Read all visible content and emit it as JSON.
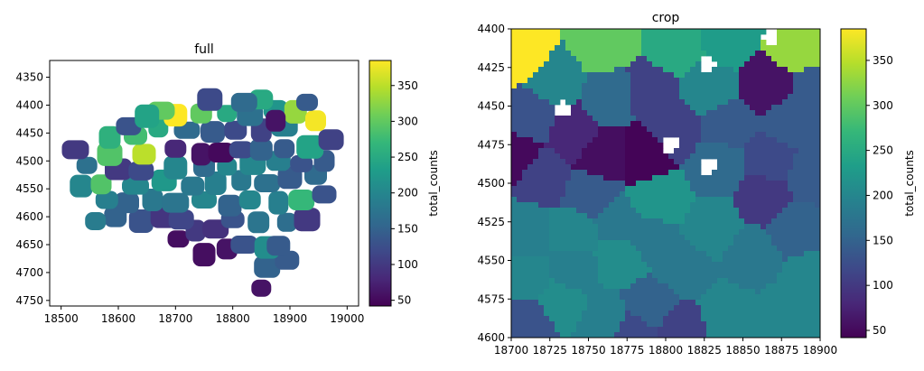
{
  "colormap": {
    "name": "viridis",
    "stops": [
      "#440154",
      "#482878",
      "#3e4989",
      "#31688e",
      "#26828e",
      "#1f9e89",
      "#35b779",
      "#6ece58",
      "#b5de2b",
      "#fde725"
    ]
  },
  "chart_data": [
    {
      "type": "heatmap",
      "kind": "spatial-segmentation",
      "title": "full",
      "xlim": [
        18480,
        19020
      ],
      "ylim": [
        4760,
        4320
      ],
      "xticks": [
        18500,
        18600,
        18700,
        18800,
        18900,
        19000
      ],
      "yticks": [
        4350,
        4400,
        4450,
        4500,
        4550,
        4600,
        4650,
        4700,
        4750
      ],
      "colorbar": {
        "label": "total_counts",
        "ticks": [
          50,
          100,
          150,
          200,
          250,
          300,
          350
        ],
        "range": [
          42,
          385
        ]
      },
      "cells": [
        {
          "x": 18850,
          "y": 4728,
          "v": 60
        },
        {
          "x": 18860,
          "y": 4690,
          "v": 150
        },
        {
          "x": 18895,
          "y": 4678,
          "v": 140
        },
        {
          "x": 18750,
          "y": 4668,
          "v": 55
        },
        {
          "x": 18790,
          "y": 4658,
          "v": 60
        },
        {
          "x": 18820,
          "y": 4650,
          "v": 130
        },
        {
          "x": 18860,
          "y": 4655,
          "v": 210
        },
        {
          "x": 18880,
          "y": 4652,
          "v": 140
        },
        {
          "x": 18705,
          "y": 4640,
          "v": 55
        },
        {
          "x": 18735,
          "y": 4625,
          "v": 100
        },
        {
          "x": 18770,
          "y": 4622,
          "v": 90
        },
        {
          "x": 18640,
          "y": 4608,
          "v": 130
        },
        {
          "x": 18595,
          "y": 4600,
          "v": 150
        },
        {
          "x": 18560,
          "y": 4608,
          "v": 185
        },
        {
          "x": 18680,
          "y": 4600,
          "v": 95
        },
        {
          "x": 18710,
          "y": 4605,
          "v": 115
        },
        {
          "x": 18800,
          "y": 4605,
          "v": 130
        },
        {
          "x": 18845,
          "y": 4610,
          "v": 175
        },
        {
          "x": 18895,
          "y": 4610,
          "v": 165
        },
        {
          "x": 18930,
          "y": 4605,
          "v": 100
        },
        {
          "x": 18615,
          "y": 4575,
          "v": 150
        },
        {
          "x": 18580,
          "y": 4570,
          "v": 190
        },
        {
          "x": 18660,
          "y": 4570,
          "v": 180
        },
        {
          "x": 18700,
          "y": 4575,
          "v": 175
        },
        {
          "x": 18750,
          "y": 4570,
          "v": 200
        },
        {
          "x": 18795,
          "y": 4580,
          "v": 150
        },
        {
          "x": 18830,
          "y": 4570,
          "v": 200
        },
        {
          "x": 18880,
          "y": 4575,
          "v": 190
        },
        {
          "x": 18920,
          "y": 4570,
          "v": 270
        },
        {
          "x": 18960,
          "y": 4560,
          "v": 130
        },
        {
          "x": 18535,
          "y": 4545,
          "v": 200
        },
        {
          "x": 18570,
          "y": 4542,
          "v": 290
        },
        {
          "x": 18630,
          "y": 4545,
          "v": 200
        },
        {
          "x": 18680,
          "y": 4535,
          "v": 225
        },
        {
          "x": 18730,
          "y": 4545,
          "v": 180
        },
        {
          "x": 18770,
          "y": 4540,
          "v": 190
        },
        {
          "x": 18815,
          "y": 4535,
          "v": 180
        },
        {
          "x": 18860,
          "y": 4540,
          "v": 170
        },
        {
          "x": 18900,
          "y": 4530,
          "v": 140
        },
        {
          "x": 18945,
          "y": 4525,
          "v": 160
        },
        {
          "x": 18545,
          "y": 4508,
          "v": 170
        },
        {
          "x": 18600,
          "y": 4515,
          "v": 100
        },
        {
          "x": 18640,
          "y": 4518,
          "v": 120
        },
        {
          "x": 18700,
          "y": 4512,
          "v": 200
        },
        {
          "x": 18750,
          "y": 4510,
          "v": 160
        },
        {
          "x": 18790,
          "y": 4510,
          "v": 200
        },
        {
          "x": 18835,
          "y": 4505,
          "v": 200
        },
        {
          "x": 18880,
          "y": 4500,
          "v": 190
        },
        {
          "x": 18920,
          "y": 4505,
          "v": 130
        },
        {
          "x": 18960,
          "y": 4500,
          "v": 140
        },
        {
          "x": 18525,
          "y": 4480,
          "v": 100
        },
        {
          "x": 18585,
          "y": 4488,
          "v": 290
        },
        {
          "x": 18645,
          "y": 4488,
          "v": 350
        },
        {
          "x": 18700,
          "y": 4478,
          "v": 80
        },
        {
          "x": 18745,
          "y": 4488,
          "v": 60
        },
        {
          "x": 18780,
          "y": 4485,
          "v": 50
        },
        {
          "x": 18815,
          "y": 4480,
          "v": 120
        },
        {
          "x": 18850,
          "y": 4480,
          "v": 150
        },
        {
          "x": 18890,
          "y": 4478,
          "v": 140
        },
        {
          "x": 18935,
          "y": 4475,
          "v": 240
        },
        {
          "x": 18972,
          "y": 4462,
          "v": 110
        },
        {
          "x": 18630,
          "y": 4455,
          "v": 280
        },
        {
          "x": 18585,
          "y": 4458,
          "v": 260
        },
        {
          "x": 18670,
          "y": 4440,
          "v": 250
        },
        {
          "x": 18720,
          "y": 4445,
          "v": 160
        },
        {
          "x": 18765,
          "y": 4448,
          "v": 140
        },
        {
          "x": 18805,
          "y": 4445,
          "v": 120
        },
        {
          "x": 18850,
          "y": 4445,
          "v": 110
        },
        {
          "x": 18890,
          "y": 4438,
          "v": 190
        },
        {
          "x": 18618,
          "y": 4438,
          "v": 130
        },
        {
          "x": 18700,
          "y": 4418,
          "v": 385
        },
        {
          "x": 18745,
          "y": 4415,
          "v": 300
        },
        {
          "x": 18790,
          "y": 4415,
          "v": 250
        },
        {
          "x": 18830,
          "y": 4418,
          "v": 170
        },
        {
          "x": 18875,
          "y": 4408,
          "v": 220
        },
        {
          "x": 18910,
          "y": 4412,
          "v": 330
        },
        {
          "x": 18945,
          "y": 4428,
          "v": 380
        },
        {
          "x": 18675,
          "y": 4410,
          "v": 300
        },
        {
          "x": 18760,
          "y": 4390,
          "v": 120
        },
        {
          "x": 18850,
          "y": 4390,
          "v": 250
        },
        {
          "x": 18930,
          "y": 4395,
          "v": 140
        },
        {
          "x": 18875,
          "y": 4428,
          "v": 60
        },
        {
          "x": 18820,
          "y": 4395,
          "v": 160
        },
        {
          "x": 18650,
          "y": 4420,
          "v": 240
        }
      ]
    },
    {
      "type": "heatmap",
      "kind": "spatial-segmentation-crop",
      "title": "crop",
      "xlim": [
        18700,
        18900
      ],
      "ylim": [
        4600,
        4400
      ],
      "xticks": [
        18700,
        18725,
        18750,
        18775,
        18800,
        18825,
        18850,
        18875,
        18900
      ],
      "yticks": [
        4400,
        4425,
        4450,
        4475,
        4500,
        4525,
        4550,
        4575,
        4600
      ],
      "colorbar": {
        "label": "total_counts",
        "ticks": [
          50,
          100,
          150,
          200,
          250,
          300,
          350
        ],
        "range": [
          42,
          385
        ]
      },
      "cells": [
        {
          "x": 18710,
          "y": 4415,
          "v": 385
        },
        {
          "x": 18758,
          "y": 4410,
          "v": 300
        },
        {
          "x": 18808,
          "y": 4412,
          "v": 250
        },
        {
          "x": 18840,
          "y": 4408,
          "v": 230
        },
        {
          "x": 18885,
          "y": 4412,
          "v": 330
        },
        {
          "x": 18728,
          "y": 4432,
          "v": 200
        },
        {
          "x": 18790,
          "y": 4442,
          "v": 110
        },
        {
          "x": 18828,
          "y": 4438,
          "v": 200
        },
        {
          "x": 18865,
          "y": 4436,
          "v": 60
        },
        {
          "x": 18897,
          "y": 4440,
          "v": 140
        },
        {
          "x": 18765,
          "y": 4445,
          "v": 160
        },
        {
          "x": 18712,
          "y": 4458,
          "v": 130
        },
        {
          "x": 18740,
          "y": 4468,
          "v": 80
        },
        {
          "x": 18805,
          "y": 4465,
          "v": 110
        },
        {
          "x": 18840,
          "y": 4462,
          "v": 140
        },
        {
          "x": 18880,
          "y": 4462,
          "v": 140
        },
        {
          "x": 18703,
          "y": 4482,
          "v": 50
        },
        {
          "x": 18720,
          "y": 4495,
          "v": 110
        },
        {
          "x": 18760,
          "y": 4482,
          "v": 55
        },
        {
          "x": 18785,
          "y": 4482,
          "v": 45
        },
        {
          "x": 18835,
          "y": 4488,
          "v": 160
        },
        {
          "x": 18868,
          "y": 4485,
          "v": 120
        },
        {
          "x": 18894,
          "y": 4495,
          "v": 140
        },
        {
          "x": 18752,
          "y": 4508,
          "v": 140
        },
        {
          "x": 18795,
          "y": 4512,
          "v": 220
        },
        {
          "x": 18865,
          "y": 4508,
          "v": 100
        },
        {
          "x": 18710,
          "y": 4532,
          "v": 190
        },
        {
          "x": 18742,
          "y": 4532,
          "v": 200
        },
        {
          "x": 18790,
          "y": 4535,
          "v": 180
        },
        {
          "x": 18830,
          "y": 4530,
          "v": 200
        },
        {
          "x": 18855,
          "y": 4548,
          "v": 180
        },
        {
          "x": 18885,
          "y": 4530,
          "v": 150
        },
        {
          "x": 18770,
          "y": 4548,
          "v": 210
        },
        {
          "x": 18740,
          "y": 4555,
          "v": 190
        },
        {
          "x": 18710,
          "y": 4562,
          "v": 200
        },
        {
          "x": 18812,
          "y": 4555,
          "v": 180
        },
        {
          "x": 18895,
          "y": 4560,
          "v": 200
        },
        {
          "x": 18732,
          "y": 4578,
          "v": 210
        },
        {
          "x": 18713,
          "y": 4590,
          "v": 130
        },
        {
          "x": 18760,
          "y": 4590,
          "v": 190
        },
        {
          "x": 18790,
          "y": 4580,
          "v": 150
        },
        {
          "x": 18810,
          "y": 4595,
          "v": 110
        },
        {
          "x": 18840,
          "y": 4585,
          "v": 200
        },
        {
          "x": 18878,
          "y": 4585,
          "v": 200
        },
        {
          "x": 18768,
          "y": 4526,
          "v": 180
        },
        {
          "x": 18780,
          "y": 4598,
          "v": 120
        }
      ],
      "gaps": [
        {
          "x": 18827,
          "y": 4423
        },
        {
          "x": 18803,
          "y": 4475
        },
        {
          "x": 18827,
          "y": 4488
        },
        {
          "x": 18733,
          "y": 4452
        },
        {
          "x": 18868,
          "y": 4405
        }
      ]
    }
  ]
}
